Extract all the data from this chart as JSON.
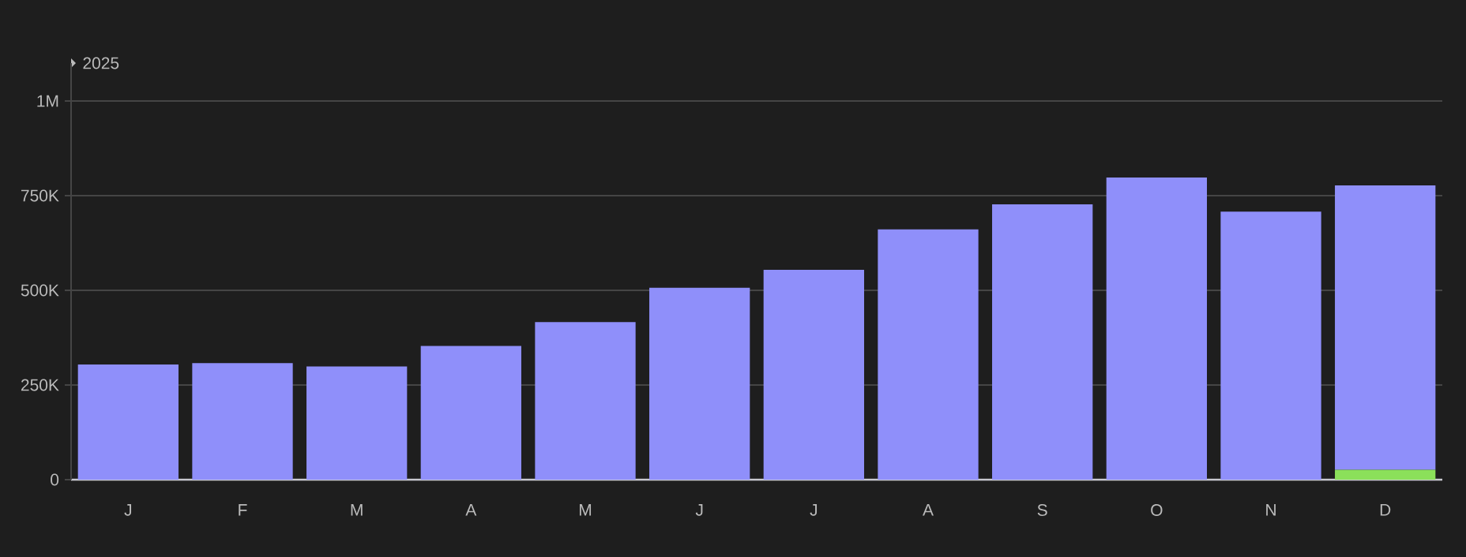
{
  "chart_data": {
    "type": "bar",
    "stacked": true,
    "legend_title": "2025",
    "categories": [
      "J",
      "F",
      "M",
      "A",
      "M",
      "J",
      "J",
      "A",
      "S",
      "O",
      "N",
      "D"
    ],
    "series": [
      {
        "color": "#8be05a",
        "values": [
          0,
          0,
          0,
          0,
          0,
          0,
          0,
          0,
          0,
          0,
          0,
          26000
        ]
      },
      {
        "color": "#8f8ffa",
        "values": [
          304000,
          308000,
          299000,
          353000,
          416000,
          507000,
          554000,
          661000,
          727000,
          798000,
          708000,
          751000
        ]
      }
    ],
    "ylim": [
      0,
      1100000
    ],
    "yticks": [
      0,
      {
        "value": 250000,
        "label": "250K"
      },
      {
        "value": 500000,
        "label": "500K"
      },
      {
        "value": 750000,
        "label": "750K"
      },
      {
        "value": 1000000,
        "label": "1M"
      }
    ],
    "grid": "y"
  }
}
